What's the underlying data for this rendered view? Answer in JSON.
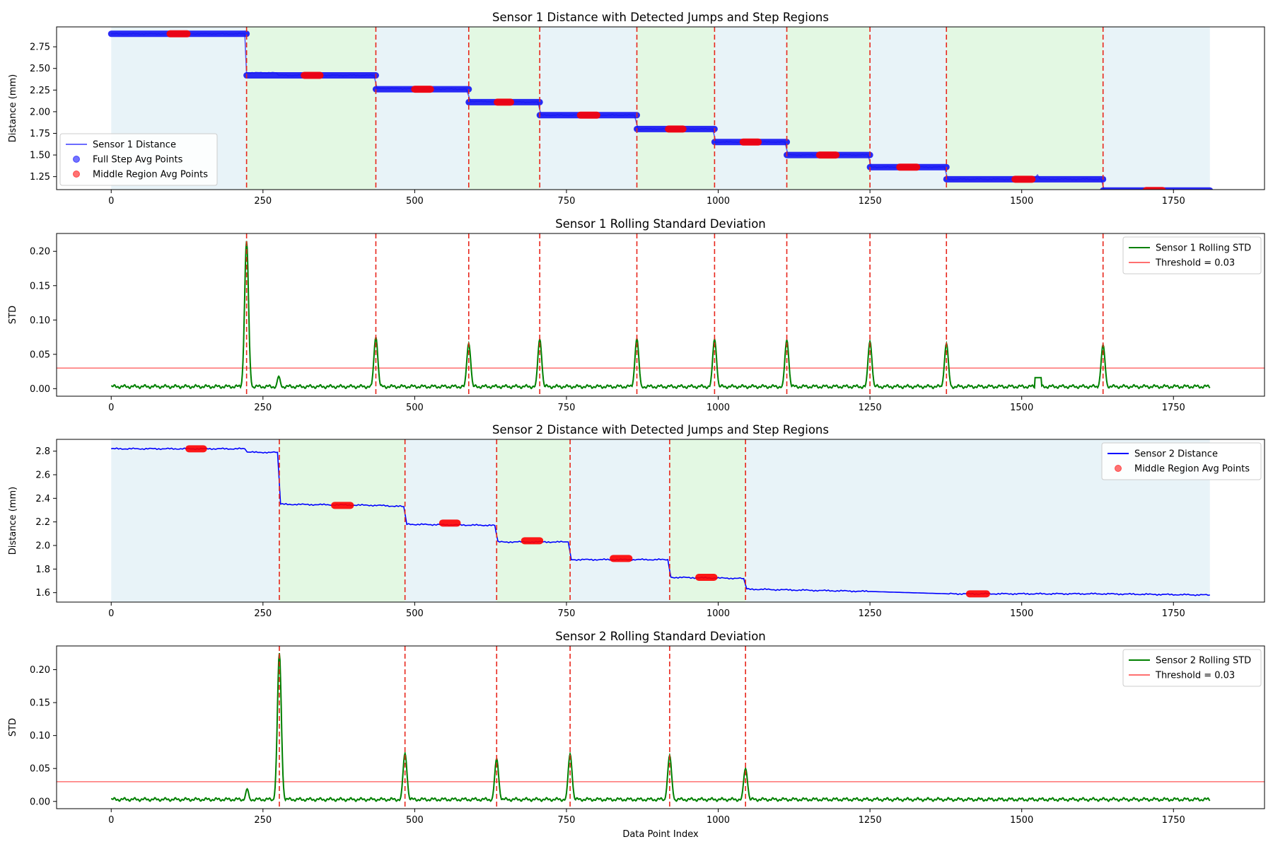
{
  "figure": {
    "xlabel_bottom": "Data Point Index"
  },
  "chart_data": [
    {
      "type": "line",
      "title": "Sensor 1 Distance with Detected Jumps and Step Regions",
      "xlabel": "",
      "ylabel": "Distance (mm)",
      "xlim": [
        -90,
        1900
      ],
      "ylim": [
        1.1,
        2.98
      ],
      "xticks": [
        0,
        250,
        500,
        750,
        1000,
        1250,
        1500,
        1750
      ],
      "yticks": [
        1.25,
        1.5,
        1.75,
        2.0,
        2.25,
        2.5,
        2.75
      ],
      "ytick_format": 2,
      "grid": false,
      "legend": {
        "placement": "lower-left",
        "entries": [
          {
            "label": "Sensor 1 Distance",
            "kind": "line",
            "color": "#6b6bff"
          },
          {
            "label": "Full Step Avg Points",
            "kind": "dot",
            "color": "#0000ff"
          },
          {
            "label": "Middle Region Avg Points",
            "kind": "dot",
            "color": "#ff0000"
          }
        ]
      },
      "jumps": [
        223,
        436,
        589,
        706,
        866,
        994,
        1113,
        1250,
        1376,
        1634
      ],
      "regions": {
        "bounds": [
          0,
          223,
          436,
          589,
          706,
          866,
          994,
          1113,
          1250,
          1376,
          1634,
          1810
        ],
        "colors": [
          "#e8f3f8",
          "#e3f8e3"
        ]
      },
      "steps": [
        {
          "start": 0,
          "end": 223,
          "value": 2.9
        },
        {
          "start": 223,
          "end": 436,
          "value": 2.42
        },
        {
          "start": 436,
          "end": 589,
          "value": 2.26
        },
        {
          "start": 589,
          "end": 706,
          "value": 2.11
        },
        {
          "start": 706,
          "end": 866,
          "value": 1.96
        },
        {
          "start": 866,
          "end": 994,
          "value": 1.8
        },
        {
          "start": 994,
          "end": 1113,
          "value": 1.65
        },
        {
          "start": 1113,
          "end": 1250,
          "value": 1.5
        },
        {
          "start": 1250,
          "end": 1376,
          "value": 1.36
        },
        {
          "start": 1376,
          "end": 1634,
          "value": 1.22
        },
        {
          "start": 1634,
          "end": 1810,
          "value": 1.09
        }
      ],
      "middle_points": [
        {
          "x0": 97,
          "x1": 125,
          "y": 2.9
        },
        {
          "x0": 318,
          "x1": 344,
          "y": 2.42
        },
        {
          "x0": 500,
          "x1": 526,
          "y": 2.26
        },
        {
          "x0": 636,
          "x1": 658,
          "y": 2.11
        },
        {
          "x0": 773,
          "x1": 800,
          "y": 1.96
        },
        {
          "x0": 918,
          "x1": 942,
          "y": 1.8
        },
        {
          "x0": 1041,
          "x1": 1066,
          "y": 1.65
        },
        {
          "x0": 1167,
          "x1": 1194,
          "y": 1.5
        },
        {
          "x0": 1299,
          "x1": 1327,
          "y": 1.36
        },
        {
          "x0": 1489,
          "x1": 1517,
          "y": 1.22
        },
        {
          "x0": 1705,
          "x1": 1732,
          "y": 1.09
        }
      ],
      "series": [
        {
          "name": "Sensor 1 Distance",
          "color": "#5a5af0",
          "points": [
            [
              0,
              2.9
            ],
            [
              220,
              2.9
            ],
            [
              223,
              2.45
            ],
            [
              250,
              2.45
            ],
            [
              272,
              2.45
            ],
            [
              276,
              2.42
            ],
            [
              433,
              2.42
            ],
            [
              438,
              2.27
            ],
            [
              585,
              2.26
            ],
            [
              592,
              2.12
            ],
            [
              703,
              2.11
            ],
            [
              708,
              1.96
            ],
            [
              862,
              1.96
            ],
            [
              868,
              1.8
            ],
            [
              991,
              1.8
            ],
            [
              996,
              1.65
            ],
            [
              1110,
              1.65
            ],
            [
              1115,
              1.5
            ],
            [
              1247,
              1.5
            ],
            [
              1252,
              1.36
            ],
            [
              1373,
              1.36
            ],
            [
              1378,
              1.22
            ],
            [
              1520,
              1.22
            ],
            [
              1526,
              1.27
            ],
            [
              1530,
              1.22
            ],
            [
              1631,
              1.22
            ],
            [
              1636,
              1.09
            ],
            [
              1810,
              1.09
            ]
          ]
        },
        {
          "name": "Full Step Avg Points",
          "color": "#0000ff",
          "points": [
            [
              0,
              2.9
            ],
            [
              223,
              2.9
            ],
            [
              223,
              2.45
            ],
            [
              272,
              2.45
            ],
            [
              272,
              2.42
            ],
            [
              436,
              2.42
            ],
            [
              436,
              2.26
            ],
            [
              589,
              2.26
            ],
            [
              589,
              2.11
            ],
            [
              706,
              2.11
            ],
            [
              706,
              1.96
            ],
            [
              866,
              1.96
            ],
            [
              866,
              1.8
            ],
            [
              994,
              1.8
            ],
            [
              994,
              1.65
            ],
            [
              1113,
              1.65
            ],
            [
              1113,
              1.5
            ],
            [
              1250,
              1.5
            ],
            [
              1250,
              1.36
            ],
            [
              1376,
              1.36
            ],
            [
              1376,
              1.22
            ],
            [
              1634,
              1.22
            ],
            [
              1634,
              1.09
            ],
            [
              1810,
              1.09
            ]
          ]
        }
      ]
    },
    {
      "type": "line",
      "title": "Sensor 1 Rolling Standard Deviation",
      "xlabel": "",
      "ylabel": "STD",
      "xlim": [
        -90,
        1900
      ],
      "ylim": [
        -0.011,
        0.226
      ],
      "xticks": [
        0,
        250,
        500,
        750,
        1000,
        1250,
        1500,
        1750
      ],
      "yticks": [
        0.0,
        0.05,
        0.1,
        0.15,
        0.2
      ],
      "ytick_format": 2,
      "grid": false,
      "legend": {
        "placement": "top-right",
        "entries": [
          {
            "label": "Sensor 1 Rolling STD",
            "kind": "line",
            "color": "#008000"
          },
          {
            "label": "Threshold = 0.03",
            "kind": "line",
            "color": "#ff7070"
          }
        ]
      },
      "threshold": 0.03,
      "jumps": [
        223,
        436,
        589,
        706,
        866,
        994,
        1113,
        1250,
        1376,
        1634
      ],
      "baseline": 0.003,
      "spikes": [
        {
          "x": 223,
          "peak": 0.215,
          "width": 5
        },
        {
          "x": 436,
          "peak": 0.075,
          "width": 5
        },
        {
          "x": 589,
          "peak": 0.066,
          "width": 5
        },
        {
          "x": 706,
          "peak": 0.072,
          "width": 5
        },
        {
          "x": 866,
          "peak": 0.073,
          "width": 5
        },
        {
          "x": 994,
          "peak": 0.072,
          "width": 5
        },
        {
          "x": 1113,
          "peak": 0.071,
          "width": 5
        },
        {
          "x": 1250,
          "peak": 0.069,
          "width": 5
        },
        {
          "x": 1376,
          "peak": 0.066,
          "width": 5
        },
        {
          "x": 1634,
          "peak": 0.064,
          "width": 5
        },
        {
          "x": 276,
          "peak": 0.018,
          "width": 4
        }
      ],
      "plateaus": [
        {
          "start": 1522,
          "end": 1532,
          "value": 0.016
        }
      ]
    },
    {
      "type": "line",
      "title": "Sensor 2 Distance with Detected Jumps and Step Regions",
      "xlabel": "",
      "ylabel": "Distance (mm)",
      "xlim": [
        -90,
        1900
      ],
      "ylim": [
        1.52,
        2.9
      ],
      "xticks": [
        0,
        250,
        500,
        750,
        1000,
        1250,
        1500,
        1750
      ],
      "yticks": [
        1.6,
        1.8,
        2.0,
        2.2,
        2.4,
        2.6,
        2.8
      ],
      "ytick_format": 1,
      "grid": false,
      "legend": {
        "placement": "top-right",
        "entries": [
          {
            "label": "Sensor 2 Distance",
            "kind": "line",
            "color": "#0000ff"
          },
          {
            "label": "Middle Region Avg Points",
            "kind": "dot",
            "color": "#ff0000"
          }
        ]
      },
      "jumps": [
        277,
        484,
        635,
        756,
        920,
        1045
      ],
      "regions": {
        "bounds": [
          0,
          277,
          484,
          635,
          756,
          920,
          1045,
          1810
        ],
        "colors": [
          "#e8f3f8",
          "#e3f8e3"
        ]
      },
      "middle_points": [
        {
          "x0": 128,
          "x1": 152,
          "y": 2.82
        },
        {
          "x0": 368,
          "x1": 394,
          "y": 2.34
        },
        {
          "x0": 546,
          "x1": 570,
          "y": 2.19
        },
        {
          "x0": 681,
          "x1": 706,
          "y": 2.04
        },
        {
          "x0": 827,
          "x1": 853,
          "y": 1.89
        },
        {
          "x0": 968,
          "x1": 993,
          "y": 1.73
        },
        {
          "x0": 1414,
          "x1": 1442,
          "y": 1.59
        }
      ],
      "series": [
        {
          "name": "Sensor 2 Distance",
          "color": "#0000ff",
          "points": [
            [
              0,
              2.82
            ],
            [
              220,
              2.82
            ],
            [
              224,
              2.79
            ],
            [
              274,
              2.79
            ],
            [
              279,
              2.35
            ],
            [
              440,
              2.34
            ],
            [
              482,
              2.33
            ],
            [
              487,
              2.18
            ],
            [
              632,
              2.17
            ],
            [
              637,
              2.03
            ],
            [
              753,
              2.03
            ],
            [
              758,
              1.88
            ],
            [
              917,
              1.88
            ],
            [
              922,
              1.73
            ],
            [
              1042,
              1.72
            ],
            [
              1047,
              1.63
            ],
            [
              1250,
              1.61
            ],
            [
              1380,
              1.59
            ],
            [
              1630,
              1.59
            ],
            [
              1810,
              1.58
            ]
          ]
        }
      ]
    },
    {
      "type": "line",
      "title": "Sensor 2 Rolling Standard Deviation",
      "xlabel": "Data Point Index",
      "ylabel": "STD",
      "xlim": [
        -90,
        1900
      ],
      "ylim": [
        -0.011,
        0.236
      ],
      "xticks": [
        0,
        250,
        500,
        750,
        1000,
        1250,
        1500,
        1750
      ],
      "yticks": [
        0.0,
        0.05,
        0.1,
        0.15,
        0.2
      ],
      "ytick_format": 2,
      "grid": false,
      "legend": {
        "placement": "top-right",
        "entries": [
          {
            "label": "Sensor 2 Rolling STD",
            "kind": "line",
            "color": "#008000"
          },
          {
            "label": "Threshold = 0.03",
            "kind": "line",
            "color": "#ff7070"
          }
        ]
      },
      "threshold": 0.03,
      "jumps": [
        277,
        484,
        635,
        756,
        920,
        1045
      ],
      "baseline": 0.003,
      "spikes": [
        {
          "x": 277,
          "peak": 0.225,
          "width": 5
        },
        {
          "x": 484,
          "peak": 0.073,
          "width": 5
        },
        {
          "x": 635,
          "peak": 0.065,
          "width": 5
        },
        {
          "x": 756,
          "peak": 0.072,
          "width": 5
        },
        {
          "x": 920,
          "peak": 0.07,
          "width": 5
        },
        {
          "x": 1045,
          "peak": 0.05,
          "width": 5
        },
        {
          "x": 224,
          "peak": 0.019,
          "width": 4
        }
      ],
      "plateaus": []
    }
  ]
}
